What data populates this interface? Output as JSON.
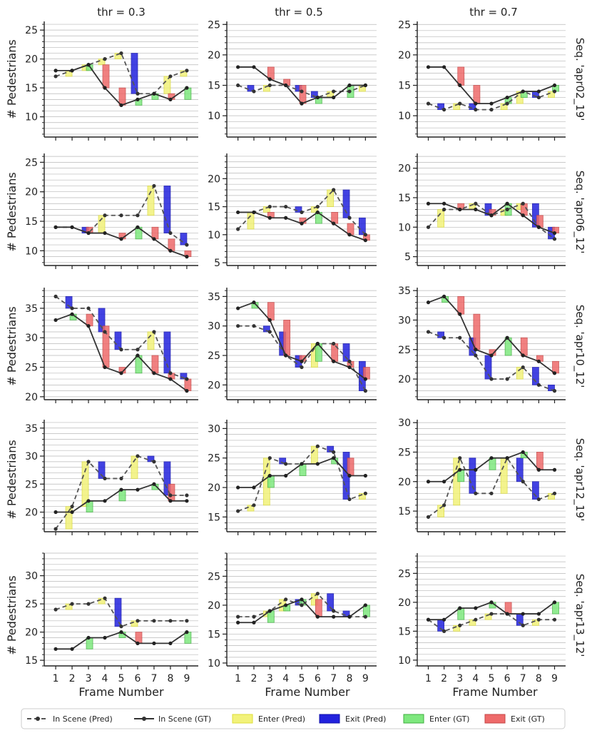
{
  "figure": {
    "x_label": "Frame Number",
    "y_label": "# Pedestrians",
    "columns": [
      "thr = 0.3",
      "thr = 0.5",
      "thr = 0.7"
    ],
    "rows": [
      "Seq. 'apr02_19'",
      "Seq. 'apr06_12'",
      "Seq. 'apr10_12'",
      "Seq. 'apr12_19'",
      "Seq. 'apr13_12'"
    ],
    "legend": [
      "In Scene (Pred)",
      "In Scene (GT)",
      "Enter (Pred)",
      "Exit (Pred)",
      "Enter (GT)",
      "Exit (GT)"
    ],
    "colors": {
      "pred_line": "#555555",
      "gt_line": "#333333",
      "enter_pred": "#f2f27a",
      "exit_pred": "#2222dd",
      "enter_gt": "#7ee87e",
      "exit_gt": "#ee6a6a",
      "grid": "#b8b8b8",
      "axis": "#222222"
    }
  },
  "chart_data": [
    {
      "row": "Seq. 'apr02_19'",
      "col": "thr = 0.3",
      "type": "line",
      "x": [
        1,
        2,
        3,
        4,
        5,
        6,
        7,
        8,
        9
      ],
      "y_ticks": [
        10,
        15,
        20,
        25
      ],
      "ylim": [
        6.5,
        26.5
      ],
      "in_scene_pred": [
        17,
        18,
        19,
        20,
        21,
        14,
        14,
        17,
        18
      ],
      "in_scene_gt": [
        18,
        18,
        19,
        15,
        12,
        13,
        14,
        13,
        15
      ]
    },
    {
      "row": "Seq. 'apr02_19'",
      "col": "thr = 0.5",
      "type": "line",
      "x": [
        1,
        2,
        3,
        4,
        5,
        6,
        7,
        8,
        9
      ],
      "y_ticks": [
        10,
        15,
        20,
        25
      ],
      "ylim": [
        6.5,
        25.5
      ],
      "in_scene_pred": [
        15,
        14,
        15,
        15,
        14,
        13,
        14,
        14,
        15
      ],
      "in_scene_gt": [
        18,
        18,
        16,
        15,
        12,
        13,
        13,
        15,
        15
      ]
    },
    {
      "row": "Seq. 'apr02_19'",
      "col": "thr = 0.7",
      "type": "line",
      "x": [
        1,
        2,
        3,
        4,
        5,
        6,
        7,
        8,
        9
      ],
      "y_ticks": [
        10,
        15,
        20,
        25
      ],
      "ylim": [
        6.5,
        25.5
      ],
      "in_scene_pred": [
        12,
        11,
        12,
        11,
        11,
        12,
        14,
        13,
        14
      ],
      "in_scene_gt": [
        18,
        18,
        15,
        12,
        12,
        13,
        14,
        14,
        15
      ]
    },
    {
      "row": "Seq. 'apr06_12'",
      "col": "thr = 0.3",
      "type": "line",
      "x": [
        1,
        2,
        3,
        4,
        5,
        6,
        7,
        8,
        9
      ],
      "y_ticks": [
        10,
        15,
        20,
        25
      ],
      "ylim": [
        7.5,
        26.5
      ],
      "in_scene_pred": [
        14,
        14,
        13,
        16,
        16,
        16,
        21,
        13,
        11
      ],
      "in_scene_gt": [
        14,
        14,
        13,
        13,
        12,
        14,
        12,
        10,
        9
      ]
    },
    {
      "row": "Seq. 'apr06_12'",
      "col": "thr = 0.5",
      "type": "line",
      "x": [
        1,
        2,
        3,
        4,
        5,
        6,
        7,
        8,
        9
      ],
      "y_ticks": [
        5,
        10,
        15,
        20
      ],
      "ylim": [
        4.5,
        24.5
      ],
      "in_scene_pred": [
        11,
        14,
        15,
        15,
        14,
        15,
        18,
        13,
        10
      ],
      "in_scene_gt": [
        14,
        14,
        13,
        13,
        12,
        14,
        12,
        10,
        9
      ]
    },
    {
      "row": "Seq. 'apr06_12'",
      "col": "thr = 0.7",
      "type": "line",
      "x": [
        1,
        2,
        3,
        4,
        5,
        6,
        7,
        8,
        9
      ],
      "y_ticks": [
        5,
        10,
        15,
        20
      ],
      "ylim": [
        3.5,
        22.5
      ],
      "in_scene_pred": [
        10,
        13,
        13,
        14,
        12,
        13,
        14,
        10,
        8
      ],
      "in_scene_gt": [
        14,
        14,
        13,
        13,
        12,
        14,
        12,
        10,
        9
      ]
    },
    {
      "row": "Seq. 'apr10_12'",
      "col": "thr = 0.3",
      "type": "line",
      "x": [
        1,
        2,
        3,
        4,
        5,
        6,
        7,
        8,
        9
      ],
      "y_ticks": [
        20,
        25,
        30,
        35
      ],
      "ylim": [
        19.5,
        38.5
      ],
      "in_scene_pred": [
        37,
        35,
        35,
        31,
        28,
        28,
        31,
        24,
        23
      ],
      "in_scene_gt": [
        33,
        34,
        32,
        25,
        24,
        27,
        24,
        23,
        21
      ]
    },
    {
      "row": "Seq. 'apr10_12'",
      "col": "thr = 0.5",
      "type": "line",
      "x": [
        1,
        2,
        3,
        4,
        5,
        6,
        7,
        8,
        9
      ],
      "y_ticks": [
        20,
        25,
        30,
        35
      ],
      "ylim": [
        17.5,
        36.5
      ],
      "in_scene_pred": [
        30,
        30,
        29,
        25,
        23,
        27,
        27,
        24,
        19
      ],
      "in_scene_gt": [
        33,
        34,
        31,
        25,
        24,
        27,
        24,
        23,
        21
      ]
    },
    {
      "row": "Seq. 'apr10_12'",
      "col": "thr = 0.7",
      "type": "line",
      "x": [
        1,
        2,
        3,
        4,
        5,
        6,
        7,
        8,
        9
      ],
      "y_ticks": [
        20,
        25,
        30,
        35
      ],
      "ylim": [
        16.5,
        35.5
      ],
      "in_scene_pred": [
        28,
        27,
        27,
        24,
        20,
        20,
        22,
        19,
        18
      ],
      "in_scene_gt": [
        33,
        34,
        31,
        25,
        24,
        27,
        24,
        23,
        21
      ]
    },
    {
      "row": "Seq. 'apr12_19'",
      "col": "thr = 0.3",
      "type": "line",
      "x": [
        1,
        2,
        3,
        4,
        5,
        6,
        7,
        8,
        9
      ],
      "y_ticks": [
        20,
        25,
        30,
        35
      ],
      "ylim": [
        16.5,
        36.5
      ],
      "in_scene_pred": [
        17,
        21,
        29,
        26,
        26,
        30,
        29,
        23,
        23
      ],
      "in_scene_gt": [
        20,
        20,
        22,
        22,
        24,
        24,
        25,
        22,
        22
      ]
    },
    {
      "row": "Seq. 'apr12_19'",
      "col": "thr = 0.5",
      "type": "line",
      "x": [
        1,
        2,
        3,
        4,
        5,
        6,
        7,
        8,
        9
      ],
      "y_ticks": [
        15,
        20,
        25,
        30
      ],
      "ylim": [
        12.5,
        31.5
      ],
      "in_scene_pred": [
        16,
        17,
        25,
        24,
        24,
        27,
        26,
        18,
        19
      ],
      "in_scene_gt": [
        20,
        20,
        22,
        22,
        24,
        24,
        25,
        22,
        22
      ]
    },
    {
      "row": "Seq. 'apr12_19'",
      "col": "thr = 0.7",
      "type": "line",
      "x": [
        1,
        2,
        3,
        4,
        5,
        6,
        7,
        8,
        9
      ],
      "y_ticks": [
        15,
        20,
        25,
        30
      ],
      "ylim": [
        11.5,
        30.5
      ],
      "in_scene_pred": [
        14,
        16,
        24,
        18,
        18,
        24,
        20,
        17,
        18
      ],
      "in_scene_gt": [
        20,
        20,
        22,
        22,
        24,
        24,
        25,
        22,
        22
      ]
    },
    {
      "row": "Seq. 'apr13_12'",
      "col": "thr = 0.3",
      "type": "line",
      "x": [
        1,
        2,
        3,
        4,
        5,
        6,
        7,
        8,
        9
      ],
      "y_ticks": [
        15,
        20,
        25,
        30
      ],
      "ylim": [
        14,
        34
      ],
      "in_scene_pred": [
        24,
        25,
        25,
        26,
        21,
        22,
        22,
        22,
        22
      ],
      "in_scene_gt": [
        17,
        17,
        19,
        19,
        20,
        18,
        18,
        18,
        20
      ]
    },
    {
      "row": "Seq. 'apr13_12'",
      "col": "thr = 0.5",
      "type": "line",
      "x": [
        1,
        2,
        3,
        4,
        5,
        6,
        7,
        8,
        9
      ],
      "y_ticks": [
        10,
        15,
        20,
        25
      ],
      "ylim": [
        9.5,
        29
      ],
      "in_scene_pred": [
        18,
        18,
        19,
        21,
        20,
        22,
        19,
        18,
        18
      ],
      "in_scene_gt": [
        17,
        17,
        19,
        20,
        21,
        18,
        18,
        18,
        20
      ]
    },
    {
      "row": "Seq. 'apr13_12'",
      "col": "thr = 0.7",
      "type": "line",
      "x": [
        1,
        2,
        3,
        4,
        5,
        6,
        7,
        8,
        9
      ],
      "y_ticks": [
        10,
        15,
        20,
        25
      ],
      "ylim": [
        9,
        28.5
      ],
      "in_scene_pred": [
        17,
        15,
        16,
        17,
        18,
        18,
        16,
        17,
        17
      ],
      "in_scene_gt": [
        17,
        17,
        19,
        19,
        20,
        18,
        18,
        18,
        20
      ]
    }
  ]
}
